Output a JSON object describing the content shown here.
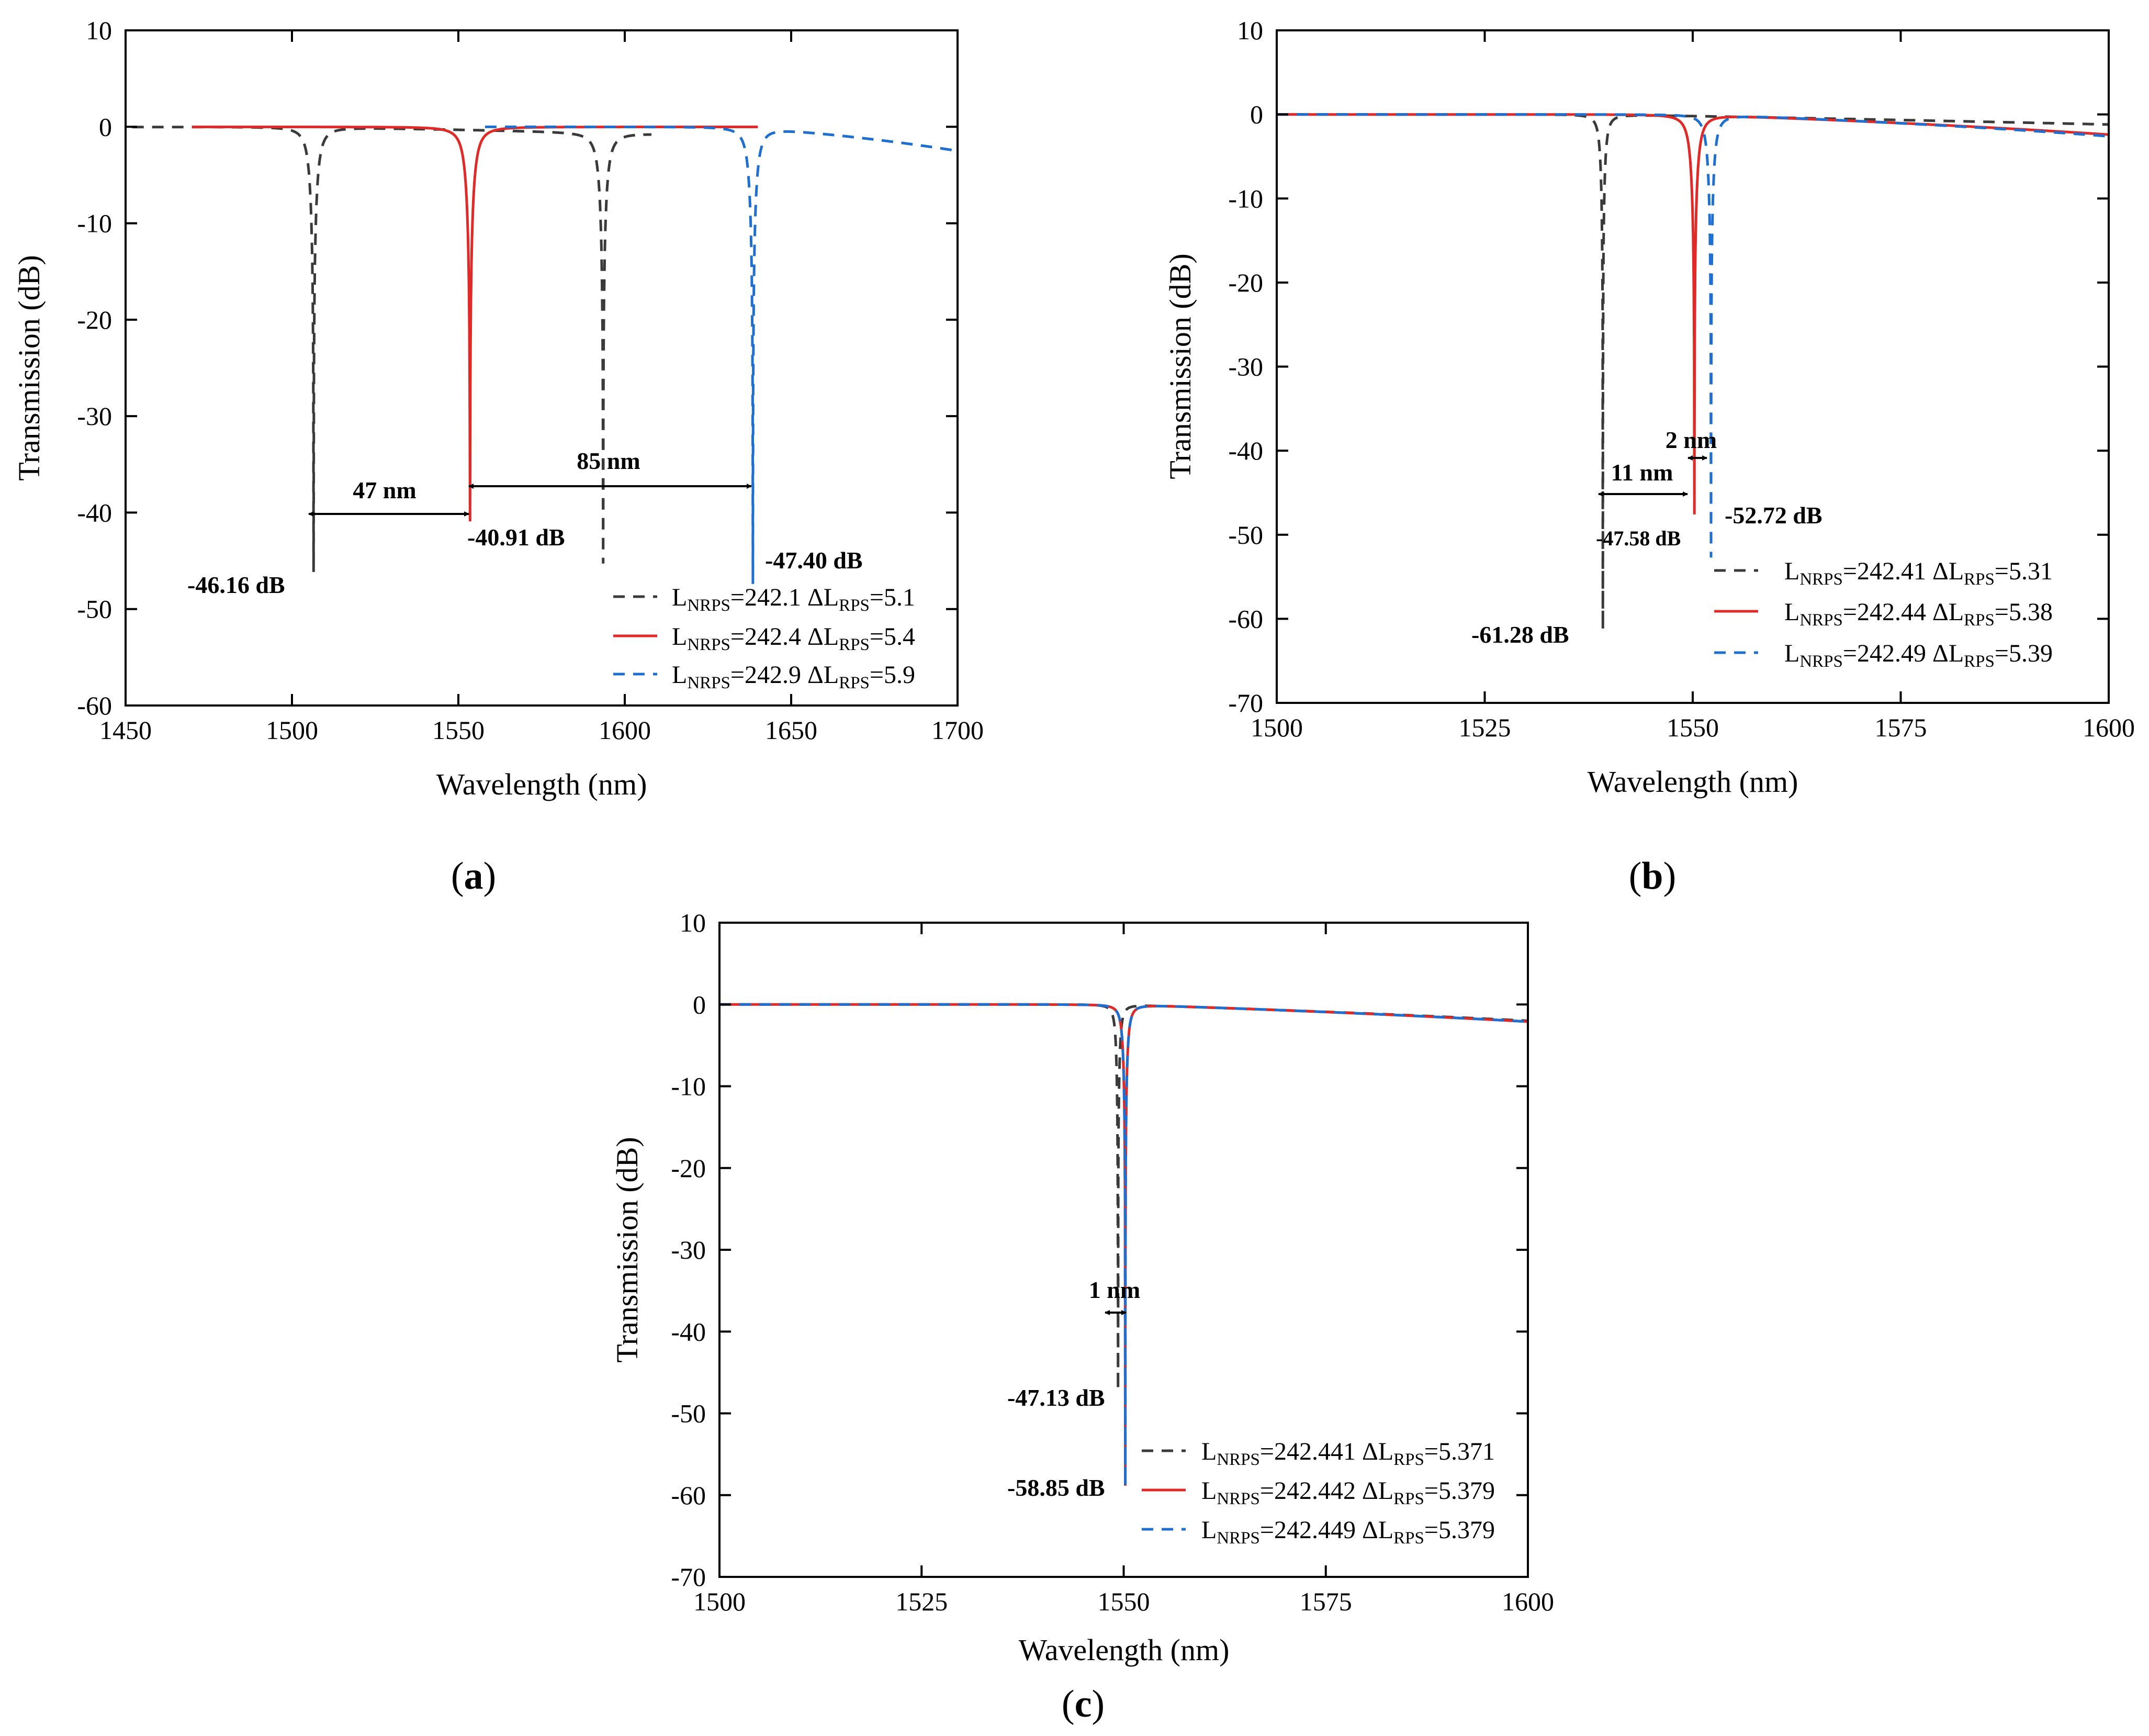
{
  "figure": {
    "colors": {
      "black": "#3a3a3a",
      "red": "#e02a28",
      "blue": "#1f6fd0",
      "axis": "#000000"
    },
    "panels": [
      {
        "panel_label": "(a)",
        "panel_letter": "a",
        "legend": [
          {
            "base": "L",
            "sub1": "NRPS",
            "mid": "=242.1 ΔL",
            "sub2": "RPS",
            "tail": "=5.1"
          },
          {
            "base": "L",
            "sub1": "NRPS",
            "mid": "=242.4 ΔL",
            "sub2": "RPS",
            "tail": "=5.4"
          },
          {
            "base": "L",
            "sub1": "NRPS",
            "mid": "=242.9 ΔL",
            "sub2": "RPS",
            "tail": "=5.9"
          }
        ],
        "annotations": [
          "-46.16 dB",
          "-40.91 dB",
          "-47.40 dB",
          "47 nm",
          "85 nm"
        ]
      },
      {
        "panel_label": "(b)",
        "panel_letter": "b",
        "legend": [
          {
            "base": "L",
            "sub1": "NRPS",
            "mid": "=242.41 ΔL",
            "sub2": "RPS",
            "tail": "=5.31"
          },
          {
            "base": "L",
            "sub1": "NRPS",
            "mid": "=242.44 ΔL",
            "sub2": "RPS",
            "tail": "=5.38"
          },
          {
            "base": "L",
            "sub1": "NRPS",
            "mid": "=242.49 ΔL",
            "sub2": "RPS",
            "tail": "=5.39"
          }
        ],
        "annotations": [
          "-61.28 dB",
          "-47.58 dB",
          "-52.72 dB",
          "11 nm",
          "2 nm"
        ]
      },
      {
        "panel_label": "(c)",
        "panel_letter": "c",
        "legend": [
          {
            "base": "L",
            "sub1": "NRPS",
            "mid": "=242.441 ΔL",
            "sub2": "RPS",
            "tail": "=5.371"
          },
          {
            "base": "L",
            "sub1": "NRPS",
            "mid": "=242.442 ΔL",
            "sub2": "RPS",
            "tail": "=5.379"
          },
          {
            "base": "L",
            "sub1": "NRPS",
            "mid": "=242.449 ΔL",
            "sub2": "RPS",
            "tail": "=5.379"
          }
        ],
        "annotations": [
          "-47.13 dB",
          "-58.85 dB",
          "1 nm"
        ]
      }
    ]
  },
  "chart_data": [
    {
      "type": "line",
      "title": "",
      "xlabel": "Wavelength (nm)",
      "ylabel": "Transmission (dB)",
      "xlim": [
        1450,
        1700
      ],
      "ylim": [
        -60,
        10
      ],
      "xticks": [
        1450,
        1500,
        1550,
        1600,
        1650,
        1700
      ],
      "yticks": [
        10,
        0,
        -10,
        -20,
        -30,
        -40,
        -50,
        -60
      ],
      "grid": false,
      "legend_position": "bottom-right",
      "series": [
        {
          "name": "LNRPS=242.1 ΔLRPS=5.1",
          "color": "#3a3a3a",
          "dash": "dash",
          "range": [
            1452,
            1608
          ],
          "center": 1506.5,
          "min": -46.16,
          "hw": 2.0,
          "period": 87,
          "right_edge": -0.8
        },
        {
          "name": "LNRPS=242.4 ΔLRPS=5.4",
          "color": "#e02a28",
          "dash": "solid",
          "range": [
            1470,
            1640
          ],
          "center": 1553.5,
          "min": -40.91,
          "hw": 2.2,
          "period": 145,
          "right_edge": -0.3
        },
        {
          "name": "LNRPS=242.9 ΔLRPS=5.9",
          "color": "#1f6fd0",
          "dash": "dash",
          "range": [
            1558,
            1700
          ],
          "center": 1638.5,
          "min": -47.4,
          "hw": 2.0,
          "period": 160,
          "right_edge": -2.5
        }
      ],
      "annotations": [
        {
          "text": "-46.16 dB",
          "x": 1506.5,
          "y": -46.16
        },
        {
          "text": "-40.91 dB",
          "x": 1553.5,
          "y": -40.91
        },
        {
          "text": "-47.40 dB",
          "x": 1638.5,
          "y": -47.4
        },
        {
          "text": "47 nm",
          "from": 1506.5,
          "to": 1553.5,
          "y": -40
        },
        {
          "text": "85 nm",
          "from": 1553.5,
          "to": 1638.5,
          "y": -37
        }
      ]
    },
    {
      "type": "line",
      "title": "",
      "xlabel": "Wavelength (nm)",
      "ylabel": "Transmission (dB)",
      "xlim": [
        1500,
        1600
      ],
      "ylim": [
        -70,
        10
      ],
      "xticks": [
        1500,
        1525,
        1550,
        1575,
        1600
      ],
      "yticks": [
        10,
        0,
        -10,
        -20,
        -30,
        -40,
        -50,
        -60,
        -70
      ],
      "grid": false,
      "legend_position": "bottom-right",
      "series": [
        {
          "name": "LNRPS=242.41 ΔLRPS=5.31",
          "color": "#3a3a3a",
          "dash": "dash",
          "range": [
            1500,
            1600
          ],
          "center": 1539.2,
          "min": -61.28,
          "hw": 0.5,
          "period": 200,
          "right_edge": -1.2
        },
        {
          "name": "LNRPS=242.44 ΔLRPS=5.38",
          "color": "#e02a28",
          "dash": "solid",
          "range": [
            1500,
            1600
          ],
          "center": 1550.2,
          "min": -47.58,
          "hw": 0.8,
          "period": 200,
          "right_edge": -2.4
        },
        {
          "name": "LNRPS=242.49 ΔLRPS=5.39",
          "color": "#1f6fd0",
          "dash": "dash",
          "range": [
            1500,
            1600
          ],
          "center": 1552.2,
          "min": -52.72,
          "hw": 0.7,
          "period": 200,
          "right_edge": -2.6
        }
      ],
      "annotations": [
        {
          "text": "-61.28 dB",
          "x": 1539.2,
          "y": -61.28
        },
        {
          "text": "-47.58 dB",
          "x": 1550.2,
          "y": -47.58
        },
        {
          "text": "-52.72 dB",
          "x": 1552.2,
          "y": -52.72
        },
        {
          "text": "11 nm",
          "from": 1539.2,
          "to": 1550.2,
          "y": -45
        },
        {
          "text": "2 nm",
          "from": 1550.2,
          "to": 1552.2,
          "y": -41
        }
      ]
    },
    {
      "type": "line",
      "title": "",
      "xlabel": "Wavelength (nm)",
      "ylabel": "Transmission (dB)",
      "xlim": [
        1500,
        1600
      ],
      "ylim": [
        -70,
        10
      ],
      "xticks": [
        1500,
        1525,
        1550,
        1575,
        1600
      ],
      "yticks": [
        10,
        0,
        -10,
        -20,
        -30,
        -40,
        -50,
        -60,
        -70
      ],
      "grid": false,
      "legend_position": "bottom-right",
      "series": [
        {
          "name": "LNRPS=242.441 ΔLRPS=5.371",
          "color": "#3a3a3a",
          "dash": "dash",
          "range": [
            1500,
            1600
          ],
          "center": 1549.3,
          "min": -47.13,
          "hw": 0.4,
          "period": 200,
          "right_edge": -2.0
        },
        {
          "name": "LNRPS=242.442 ΔLRPS=5.379",
          "color": "#e02a28",
          "dash": "solid",
          "range": [
            1500,
            1600
          ],
          "center": 1550.2,
          "min": -58.85,
          "hw": 0.5,
          "period": 200,
          "right_edge": -2.1
        },
        {
          "name": "LNRPS=242.449 ΔLRPS=5.379",
          "color": "#1f6fd0",
          "dash": "dash",
          "range": [
            1500,
            1600
          ],
          "center": 1550.2,
          "min": -58.85,
          "hw": 0.5,
          "period": 200,
          "right_edge": -2.1
        }
      ],
      "annotations": [
        {
          "text": "-47.13 dB",
          "x": 1549.3,
          "y": -47.13
        },
        {
          "text": "-58.85 dB",
          "x": 1550.2,
          "y": -58.85
        },
        {
          "text": "1 nm",
          "from": 1549.3,
          "to": 1550.3,
          "y": -38
        }
      ]
    }
  ]
}
